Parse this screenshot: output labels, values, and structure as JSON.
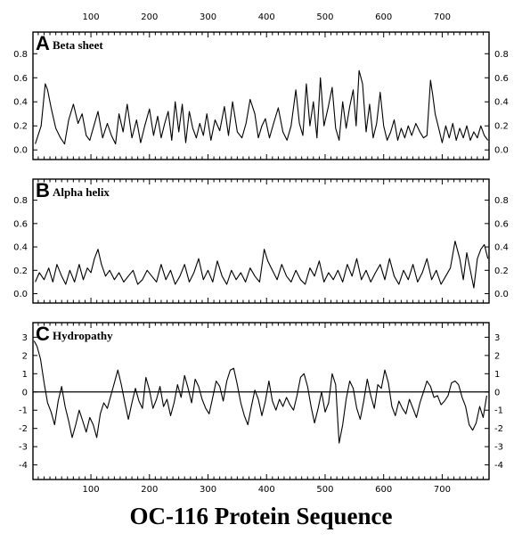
{
  "figure": {
    "xlabel": "OC-116 Protein Sequence"
  },
  "chart_data": [
    {
      "type": "line",
      "panel_letter": "A",
      "title": "Beta sheet",
      "xlabel": "OC-116 Protein Sequence",
      "ylabel": "",
      "xlim": [
        1,
        780
      ],
      "ylim": [
        -0.08,
        0.98
      ],
      "x_ticks": [
        100,
        200,
        300,
        400,
        500,
        600,
        700
      ],
      "y_ticks": [
        0.0,
        0.2,
        0.4,
        0.6,
        0.8
      ],
      "y_tick_labels": [
        "0.0",
        "0.2",
        "0.4",
        "0.6",
        "0.8"
      ],
      "grid": false,
      "series": [
        {
          "x": [
            5,
            15,
            22,
            26,
            32,
            40,
            48,
            55,
            62,
            70,
            78,
            85,
            92,
            98,
            105,
            112,
            120,
            128,
            135,
            142,
            148,
            155,
            162,
            170,
            178,
            185,
            192,
            200,
            207,
            214,
            220,
            226,
            232,
            238,
            244,
            250,
            256,
            262,
            268,
            274,
            280,
            286,
            292,
            298,
            305,
            312,
            320,
            328,
            335,
            342,
            350,
            358,
            365,
            372,
            380,
            386,
            392,
            398,
            405,
            412,
            420,
            428,
            435,
            442,
            450,
            456,
            462,
            468,
            474,
            480,
            486,
            492,
            498,
            505,
            512,
            518,
            524,
            530,
            536,
            542,
            548,
            553,
            558,
            564,
            570,
            576,
            582,
            588,
            594,
            600,
            606,
            612,
            618,
            624,
            630,
            636,
            642,
            648,
            655,
            662,
            668,
            674,
            680,
            684,
            688,
            694,
            700,
            706,
            712,
            718,
            724,
            730,
            736,
            742,
            748,
            754,
            760,
            766,
            772,
            778
          ],
          "values": [
            0.05,
            0.2,
            0.55,
            0.5,
            0.35,
            0.18,
            0.1,
            0.05,
            0.25,
            0.38,
            0.22,
            0.3,
            0.12,
            0.08,
            0.2,
            0.32,
            0.1,
            0.22,
            0.12,
            0.05,
            0.3,
            0.15,
            0.38,
            0.1,
            0.25,
            0.06,
            0.2,
            0.34,
            0.12,
            0.28,
            0.1,
            0.22,
            0.32,
            0.08,
            0.4,
            0.15,
            0.38,
            0.06,
            0.32,
            0.18,
            0.1,
            0.22,
            0.12,
            0.3,
            0.08,
            0.25,
            0.16,
            0.36,
            0.12,
            0.4,
            0.15,
            0.1,
            0.22,
            0.42,
            0.3,
            0.1,
            0.2,
            0.26,
            0.1,
            0.22,
            0.35,
            0.15,
            0.08,
            0.2,
            0.5,
            0.22,
            0.12,
            0.55,
            0.2,
            0.4,
            0.1,
            0.6,
            0.2,
            0.35,
            0.52,
            0.18,
            0.08,
            0.4,
            0.18,
            0.36,
            0.5,
            0.2,
            0.66,
            0.55,
            0.15,
            0.38,
            0.1,
            0.22,
            0.48,
            0.2,
            0.08,
            0.15,
            0.25,
            0.08,
            0.18,
            0.1,
            0.2,
            0.12,
            0.22,
            0.15,
            0.1,
            0.12,
            0.58,
            0.45,
            0.3,
            0.18,
            0.06,
            0.2,
            0.1,
            0.22,
            0.08,
            0.18,
            0.1,
            0.2,
            0.08,
            0.15,
            0.1,
            0.2,
            0.12,
            0.08
          ]
        }
      ]
    },
    {
      "type": "line",
      "panel_letter": "B",
      "title": "Alpha helix",
      "xlabel": "OC-116 Protein Sequence",
      "ylabel": "",
      "xlim": [
        1,
        780
      ],
      "ylim": [
        -0.08,
        0.98
      ],
      "x_ticks": [
        100,
        200,
        300,
        400,
        500,
        600,
        700
      ],
      "y_ticks": [
        0.0,
        0.2,
        0.4,
        0.6,
        0.8
      ],
      "y_tick_labels": [
        "0.0",
        "0.2",
        "0.4",
        "0.6",
        "0.8"
      ],
      "grid": false,
      "series": [
        {
          "x": [
            5,
            12,
            20,
            28,
            35,
            42,
            50,
            57,
            64,
            72,
            80,
            87,
            94,
            100,
            106,
            112,
            118,
            125,
            132,
            140,
            148,
            156,
            164,
            172,
            180,
            188,
            196,
            204,
            212,
            220,
            228,
            236,
            244,
            252,
            260,
            268,
            276,
            284,
            292,
            300,
            308,
            316,
            324,
            332,
            340,
            348,
            356,
            364,
            372,
            380,
            388,
            396,
            402,
            410,
            418,
            426,
            434,
            442,
            450,
            458,
            466,
            474,
            482,
            490,
            498,
            506,
            514,
            522,
            530,
            538,
            546,
            554,
            562,
            570,
            578,
            586,
            594,
            602,
            610,
            618,
            626,
            634,
            642,
            650,
            658,
            666,
            674,
            682,
            690,
            698,
            706,
            714,
            722,
            730,
            736,
            742,
            748,
            754,
            760,
            766,
            772,
            778
          ],
          "values": [
            0.1,
            0.18,
            0.12,
            0.22,
            0.1,
            0.25,
            0.15,
            0.08,
            0.2,
            0.1,
            0.25,
            0.12,
            0.22,
            0.18,
            0.3,
            0.38,
            0.25,
            0.15,
            0.2,
            0.12,
            0.18,
            0.1,
            0.15,
            0.2,
            0.08,
            0.12,
            0.2,
            0.15,
            0.1,
            0.25,
            0.12,
            0.2,
            0.08,
            0.15,
            0.25,
            0.1,
            0.18,
            0.3,
            0.12,
            0.2,
            0.1,
            0.28,
            0.15,
            0.08,
            0.2,
            0.12,
            0.18,
            0.1,
            0.22,
            0.15,
            0.1,
            0.38,
            0.28,
            0.2,
            0.12,
            0.25,
            0.15,
            0.1,
            0.2,
            0.12,
            0.08,
            0.22,
            0.15,
            0.28,
            0.1,
            0.18,
            0.12,
            0.2,
            0.1,
            0.25,
            0.15,
            0.3,
            0.12,
            0.2,
            0.1,
            0.18,
            0.25,
            0.12,
            0.3,
            0.15,
            0.08,
            0.2,
            0.12,
            0.25,
            0.1,
            0.18,
            0.3,
            0.12,
            0.2,
            0.08,
            0.15,
            0.22,
            0.45,
            0.3,
            0.12,
            0.35,
            0.2,
            0.05,
            0.3,
            0.38,
            0.42,
            0.3
          ]
        }
      ]
    },
    {
      "type": "line",
      "panel_letter": "C",
      "title": "Hydropathy",
      "xlabel": "OC-116 Protein Sequence",
      "ylabel": "",
      "xlim": [
        1,
        780
      ],
      "ylim": [
        -4.8,
        3.8
      ],
      "x_ticks": [
        100,
        200,
        300,
        400,
        500,
        600,
        700
      ],
      "y_ticks": [
        -4,
        -3,
        -2,
        -1,
        0,
        1,
        2,
        3
      ],
      "y_tick_labels": [
        "-4",
        "-3",
        "-2",
        "-1",
        "0",
        "1",
        "2",
        "3"
      ],
      "zero_line": true,
      "grid": false,
      "series": [
        {
          "x": [
            3,
            8,
            14,
            20,
            26,
            32,
            38,
            44,
            50,
            56,
            62,
            68,
            74,
            80,
            86,
            92,
            98,
            104,
            110,
            116,
            122,
            128,
            134,
            140,
            146,
            152,
            158,
            164,
            170,
            176,
            182,
            188,
            194,
            200,
            206,
            212,
            218,
            224,
            230,
            236,
            242,
            248,
            254,
            260,
            266,
            272,
            278,
            284,
            290,
            296,
            302,
            308,
            314,
            320,
            326,
            332,
            338,
            344,
            350,
            356,
            362,
            368,
            374,
            380,
            386,
            392,
            398,
            404,
            410,
            416,
            422,
            428,
            434,
            440,
            446,
            452,
            458,
            464,
            470,
            476,
            482,
            488,
            494,
            500,
            506,
            512,
            518,
            524,
            530,
            536,
            542,
            548,
            554,
            560,
            566,
            572,
            578,
            584,
            590,
            596,
            602,
            608,
            614,
            620,
            626,
            632,
            638,
            644,
            650,
            656,
            662,
            668,
            674,
            680,
            686,
            692,
            698,
            704,
            710,
            716,
            722,
            728,
            734,
            740,
            746,
            752,
            758,
            764,
            770,
            776
          ],
          "values": [
            2.8,
            2.5,
            1.8,
            0.5,
            -0.6,
            -1.1,
            -1.8,
            -0.5,
            0.3,
            -0.8,
            -1.6,
            -2.5,
            -1.8,
            -1.0,
            -1.6,
            -2.2,
            -1.4,
            -1.8,
            -2.5,
            -1.2,
            -0.6,
            -0.9,
            -0.2,
            0.5,
            1.2,
            0.4,
            -0.6,
            -1.5,
            -0.6,
            0.2,
            -0.5,
            -0.9,
            0.8,
            0.1,
            -0.9,
            -0.4,
            0.3,
            -0.8,
            -0.4,
            -1.3,
            -0.6,
            0.4,
            -0.3,
            0.9,
            0.2,
            -0.6,
            0.7,
            0.3,
            -0.4,
            -0.9,
            -1.2,
            -0.3,
            0.6,
            0.3,
            -0.5,
            0.6,
            1.2,
            1.3,
            0.4,
            -0.6,
            -1.3,
            -1.8,
            -0.8,
            0.1,
            -0.4,
            -1.3,
            -0.5,
            0.6,
            -0.5,
            -1.0,
            -0.4,
            -0.8,
            -0.3,
            -0.7,
            -1.0,
            -0.2,
            0.8,
            1.0,
            0.3,
            -0.8,
            -1.7,
            -0.9,
            0.0,
            -1.1,
            -0.6,
            1.0,
            0.4,
            -2.8,
            -1.8,
            -0.4,
            0.6,
            0.2,
            -0.9,
            -1.5,
            -0.5,
            0.7,
            -0.2,
            -0.9,
            0.4,
            0.2,
            1.2,
            0.5,
            -0.8,
            -1.3,
            -0.5,
            -0.9,
            -1.2,
            -0.4,
            -0.9,
            -1.4,
            -0.6,
            0.0,
            0.6,
            0.3,
            -0.3,
            -0.2,
            -0.7,
            -0.5,
            -0.2,
            0.5,
            0.6,
            0.4,
            -0.3,
            -0.8,
            -1.8,
            -2.1,
            -1.7,
            -0.8,
            -1.4,
            -0.2
          ]
        }
      ]
    }
  ]
}
